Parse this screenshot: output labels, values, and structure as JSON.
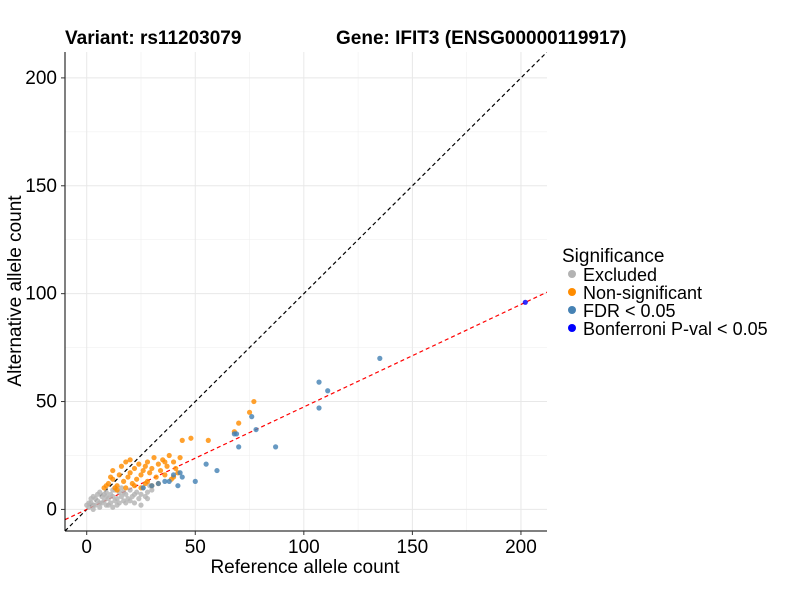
{
  "titles": {
    "variant": "Variant: rs11203079",
    "gene": "Gene: IFIT3 (ENSG00000119917)"
  },
  "legend": {
    "title": "Significance",
    "items": [
      {
        "label": "Excluded",
        "color": "#b3b3b3"
      },
      {
        "label": "Non-significant",
        "color": "#ff8c00"
      },
      {
        "label": "FDR < 0.05",
        "color": "#4682b4"
      },
      {
        "label": "Bonferroni P-val < 0.05",
        "color": "#0000ff"
      }
    ]
  },
  "chart_data": {
    "type": "scatter",
    "xlabel": "Reference allele count",
    "ylabel": "Alternative allele count",
    "xlim": [
      -10,
      212
    ],
    "ylim": [
      -10,
      212
    ],
    "xticks": [
      0,
      50,
      100,
      150,
      200
    ],
    "yticks": [
      0,
      50,
      100,
      150,
      200
    ],
    "grid": true,
    "reference_lines": [
      {
        "name": "identity",
        "slope": 1.0,
        "intercept": 0,
        "color": "#000000",
        "style": "dashed"
      },
      {
        "name": "fit",
        "slope": 0.475,
        "intercept": 0,
        "color": "#ff0000",
        "style": "dashed"
      }
    ],
    "series": [
      {
        "name": "Excluded",
        "color": "#b3b3b3",
        "points": [
          [
            1,
            1
          ],
          [
            2,
            3
          ],
          [
            3,
            2
          ],
          [
            4,
            5
          ],
          [
            5,
            4
          ],
          [
            5,
            7
          ],
          [
            6,
            3
          ],
          [
            7,
            6
          ],
          [
            8,
            4
          ],
          [
            9,
            8
          ],
          [
            9,
            2
          ],
          [
            10,
            5
          ],
          [
            11,
            7
          ],
          [
            11,
            3
          ],
          [
            12,
            6
          ],
          [
            13,
            9
          ],
          [
            13,
            4
          ],
          [
            14,
            5
          ],
          [
            15,
            8
          ],
          [
            15,
            3
          ],
          [
            16,
            6
          ],
          [
            17,
            4
          ],
          [
            18,
            7
          ],
          [
            19,
            5
          ],
          [
            20,
            9
          ],
          [
            21,
            6
          ],
          [
            22,
            3
          ],
          [
            23,
            8
          ],
          [
            24,
            5
          ],
          [
            25,
            7
          ],
          [
            26,
            10
          ],
          [
            27,
            6
          ],
          [
            28,
            8
          ],
          [
            29,
            11
          ],
          [
            30,
            9
          ],
          [
            3,
            6
          ],
          [
            4,
            2
          ],
          [
            6,
            8
          ],
          [
            7,
            3
          ],
          [
            8,
            7
          ],
          [
            10,
            2
          ],
          [
            12,
            9
          ],
          [
            14,
            2
          ],
          [
            16,
            10
          ],
          [
            18,
            3
          ],
          [
            2,
            5
          ],
          [
            6,
            1
          ],
          [
            9,
            6
          ],
          [
            12,
            1
          ],
          [
            17,
            8
          ],
          [
            20,
            4
          ],
          [
            22,
            7
          ],
          [
            25,
            2
          ],
          [
            28,
            5
          ],
          [
            1,
            3
          ],
          [
            0,
            2
          ],
          [
            3,
            0
          ]
        ]
      },
      {
        "name": "Non-significant",
        "color": "#ff8c00",
        "points": [
          [
            8,
            10
          ],
          [
            10,
            12
          ],
          [
            12,
            14
          ],
          [
            12,
            18
          ],
          [
            14,
            11
          ],
          [
            15,
            16
          ],
          [
            16,
            20
          ],
          [
            17,
            13
          ],
          [
            18,
            22
          ],
          [
            19,
            15
          ],
          [
            20,
            17
          ],
          [
            20,
            23
          ],
          [
            21,
            12
          ],
          [
            22,
            19
          ],
          [
            23,
            14
          ],
          [
            24,
            21
          ],
          [
            25,
            16
          ],
          [
            26,
            18
          ],
          [
            27,
            20
          ],
          [
            28,
            13
          ],
          [
            28,
            22
          ],
          [
            29,
            17
          ],
          [
            30,
            19
          ],
          [
            31,
            24
          ],
          [
            32,
            15
          ],
          [
            33,
            21
          ],
          [
            34,
            18
          ],
          [
            35,
            23
          ],
          [
            36,
            16
          ],
          [
            37,
            20
          ],
          [
            38,
            25
          ],
          [
            39,
            14
          ],
          [
            40,
            22
          ],
          [
            41,
            19
          ],
          [
            42,
            17
          ],
          [
            43,
            24
          ],
          [
            44,
            32
          ],
          [
            48,
            33
          ],
          [
            56,
            32
          ],
          [
            68,
            36
          ],
          [
            70,
            40
          ],
          [
            75,
            45
          ],
          [
            77,
            50
          ],
          [
            30,
            11
          ],
          [
            33,
            12
          ],
          [
            25,
            10
          ],
          [
            18,
            10
          ],
          [
            14,
            9
          ],
          [
            11,
            15
          ],
          [
            22,
            11
          ],
          [
            27,
            12
          ],
          [
            36,
            22
          ],
          [
            40,
            15
          ],
          [
            13,
            10
          ],
          [
            9,
            11
          ]
        ]
      },
      {
        "name": "FDR < 0.05",
        "color": "#4682b4",
        "points": [
          [
            30,
            11
          ],
          [
            33,
            12
          ],
          [
            38,
            13
          ],
          [
            42,
            11
          ],
          [
            43,
            17
          ],
          [
            50,
            13
          ],
          [
            55,
            21
          ],
          [
            60,
            18
          ],
          [
            68,
            35
          ],
          [
            69,
            35
          ],
          [
            70,
            29
          ],
          [
            76,
            43
          ],
          [
            78,
            37
          ],
          [
            87,
            29
          ],
          [
            107,
            47
          ],
          [
            107,
            59
          ],
          [
            111,
            55
          ],
          [
            135,
            70
          ],
          [
            44,
            15
          ],
          [
            36,
            13
          ],
          [
            26,
            10
          ],
          [
            40,
            16
          ]
        ]
      },
      {
        "name": "Bonferroni P-val < 0.05",
        "color": "#0000ff",
        "points": [
          [
            202,
            96
          ]
        ]
      }
    ]
  }
}
